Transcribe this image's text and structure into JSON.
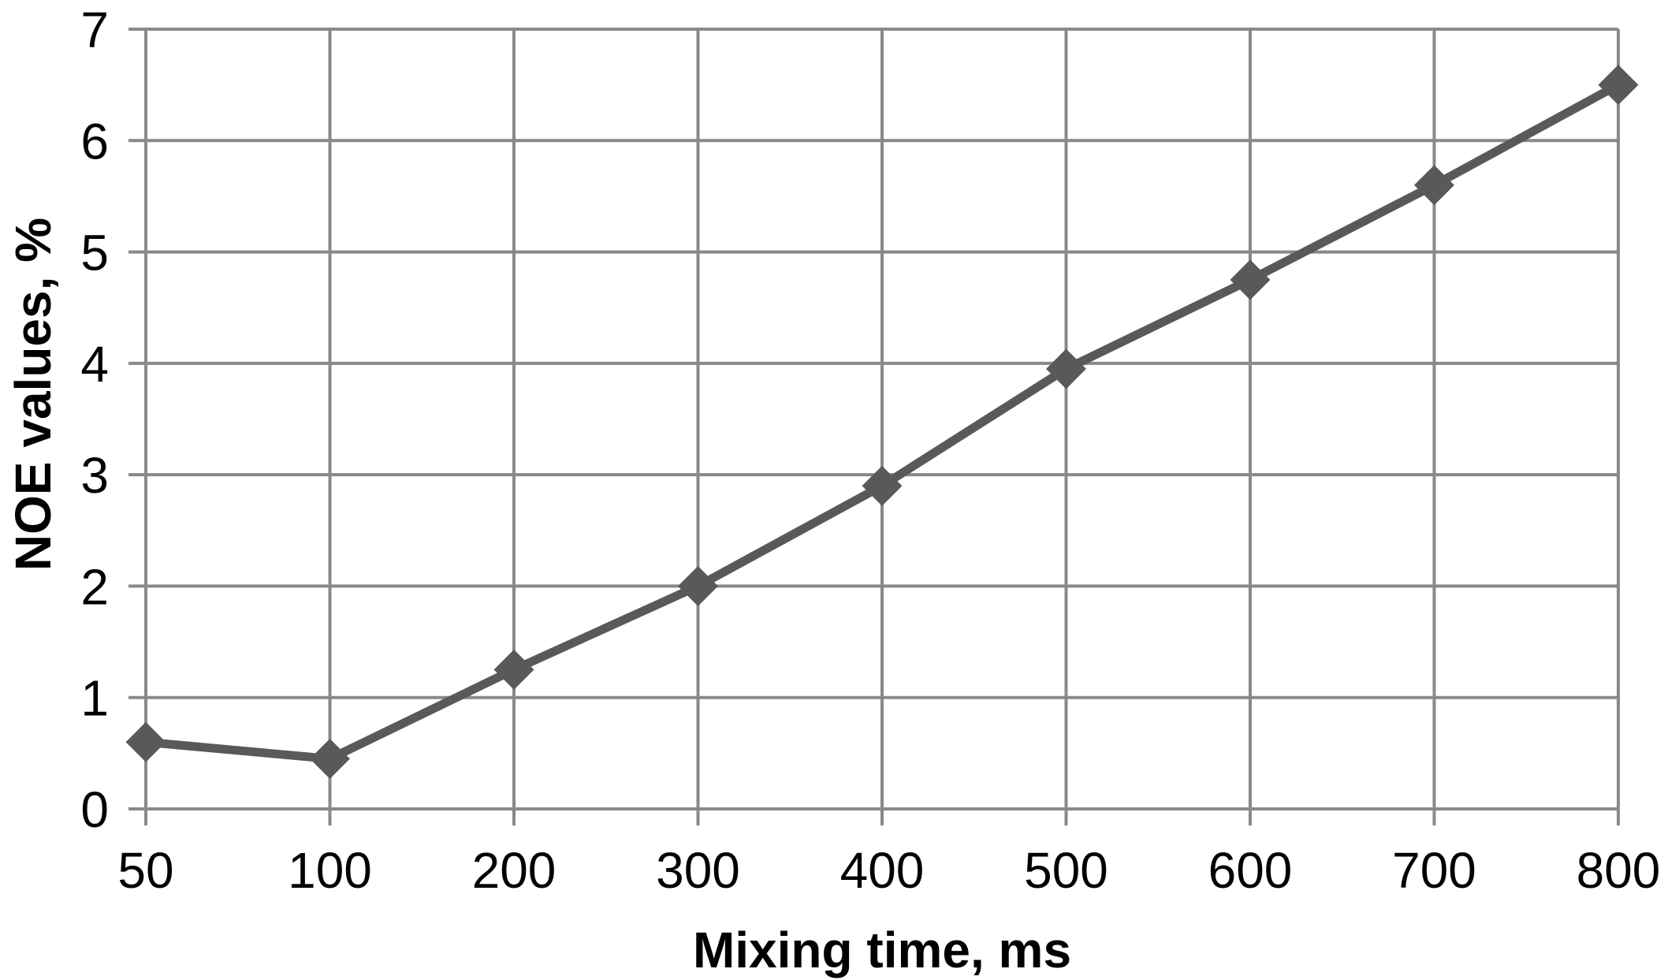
{
  "chart_data": {
    "type": "line",
    "title": "",
    "xlabel": "Mixing time, ms",
    "ylabel": "NOE values, %",
    "categories": [
      "50",
      "100",
      "200",
      "300",
      "400",
      "500",
      "600",
      "700",
      "800"
    ],
    "values": [
      0.6,
      0.45,
      1.25,
      2.0,
      2.9,
      3.95,
      4.75,
      5.6,
      6.5
    ],
    "y_ticks": [
      0,
      1,
      2,
      3,
      4,
      5,
      6,
      7
    ],
    "ylim": [
      0,
      7
    ],
    "grid": true,
    "legend": "none",
    "marker": "diamond",
    "colors": {
      "series": "#595959",
      "gridline": "#898989",
      "tick_label": "#000000",
      "axis_title": "#000000",
      "background": "#ffffff"
    }
  }
}
